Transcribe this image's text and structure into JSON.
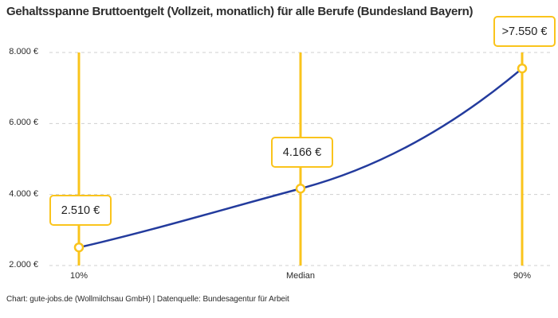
{
  "header": {
    "title": "Gehaltsspanne Bruttoentgelt (Vollzeit, monatlich) für alle Berufe (Bundesland Bayern)"
  },
  "footer": {
    "credit": "Chart: gute-jobs.de (Wollmilchsau GmbH) | Datenquelle: Bundesagentur für Arbeit"
  },
  "colors": {
    "line_blue": "#233B9D",
    "accent_yellow": "#FAC41C",
    "grid_gray": "#cfcfcf",
    "text_dark": "#2b2b2b",
    "background": "#ffffff"
  },
  "chart_data": {
    "type": "line",
    "title": "Gehaltsspanne Bruttoentgelt (Vollzeit, monatlich) für alle Berufe (Bundesland Bayern)",
    "categories": [
      "10%",
      "Median",
      "90%"
    ],
    "values": [
      2510,
      4166,
      7550
    ],
    "point_labels": [
      "2.510 €",
      "4.166 €",
      ">7.550 €"
    ],
    "ytick_values": [
      2000,
      4000,
      6000,
      8000
    ],
    "ytick_labels": [
      "2.000 €",
      "4.000 €",
      "6.000 €",
      "8.000 €"
    ],
    "ylim": [
      2000,
      8000
    ],
    "xlabel": "",
    "ylabel": "",
    "grid": "horizontal-dashed",
    "legend": "none",
    "marker_style": "open-circle"
  }
}
